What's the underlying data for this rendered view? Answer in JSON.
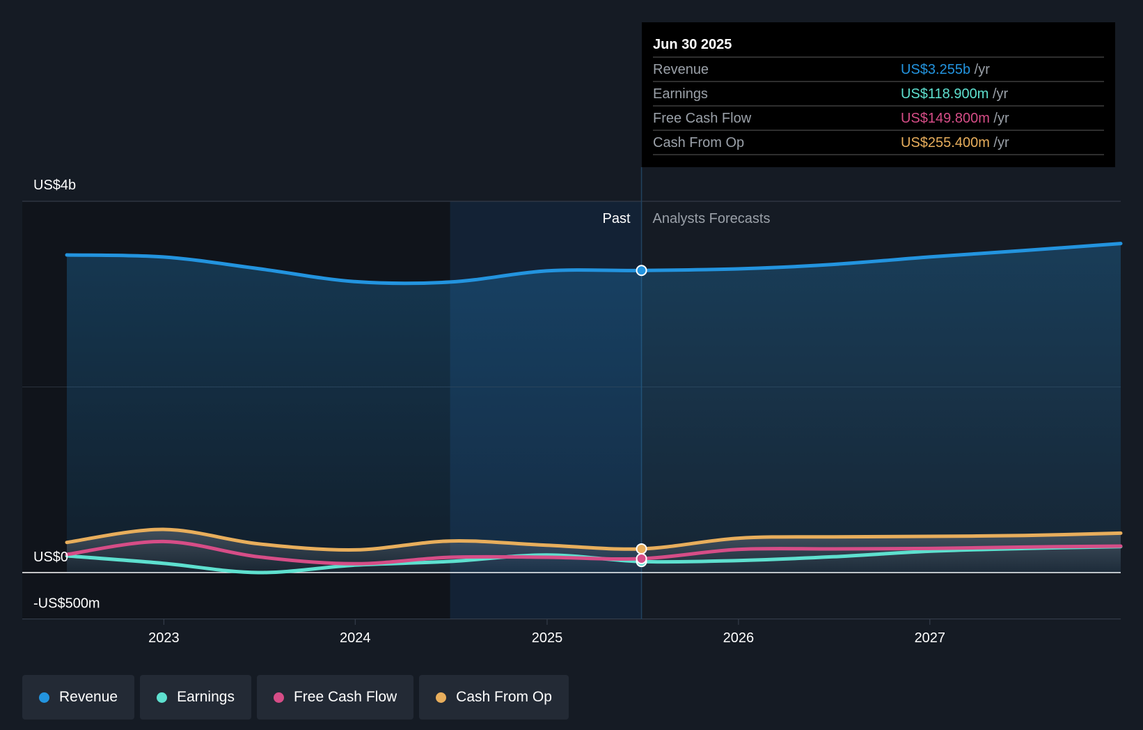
{
  "colors": {
    "background": "#151b24",
    "revenue": "#2394df",
    "earnings": "#5ee0cf",
    "free_cash_flow": "#d64d87",
    "cash_from_op": "#e8ae5c",
    "tooltip_bg": "#000000"
  },
  "tooltip": {
    "date": "Jun 30 2025",
    "rows": [
      {
        "label": "Revenue",
        "value": "US$3.255b",
        "unit": "/yr",
        "color": "#2394df"
      },
      {
        "label": "Earnings",
        "value": "US$118.900m",
        "unit": "/yr",
        "color": "#5ee0cf"
      },
      {
        "label": "Free Cash Flow",
        "value": "US$149.800m",
        "unit": "/yr",
        "color": "#d64d87"
      },
      {
        "label": "Cash From Op",
        "value": "US$255.400m",
        "unit": "/yr",
        "color": "#e8ae5c"
      }
    ]
  },
  "section_labels": {
    "past": "Past",
    "forecast": "Analysts Forecasts"
  },
  "legend": [
    {
      "label": "Revenue",
      "color": "#2394df",
      "icon": "revenue-dot-icon"
    },
    {
      "label": "Earnings",
      "color": "#5ee0cf",
      "icon": "earnings-dot-icon"
    },
    {
      "label": "Free Cash Flow",
      "color": "#d64d87",
      "icon": "free-cash-flow-dot-icon"
    },
    {
      "label": "Cash From Op",
      "color": "#e8ae5c",
      "icon": "cash-from-op-dot-icon"
    }
  ],
  "chart_data": {
    "type": "line",
    "xlabel": "",
    "ylabel": "",
    "x_ticks": [
      "2023",
      "2024",
      "2025",
      "2026",
      "2027"
    ],
    "y_ticks": [
      {
        "value": 4000,
        "label": "US$4b"
      },
      {
        "value": 0,
        "label": "US$0"
      },
      {
        "value": -500,
        "label": "-US$500m"
      }
    ],
    "ylim": [
      -500,
      4000
    ],
    "xlim": [
      "2022-06-30",
      "2027-12-31"
    ],
    "grid": true,
    "legend_position": "bottom-left",
    "past_region": [
      "2024-06-30",
      "2025-06-30"
    ],
    "focus_date": "2025-06-30",
    "series": [
      {
        "name": "Revenue",
        "color": "#2394df",
        "x": [
          "2022-06-30",
          "2022-12-31",
          "2023-06-30",
          "2023-12-31",
          "2024-06-30",
          "2024-12-31",
          "2025-06-30",
          "2025-12-31",
          "2026-06-30",
          "2026-12-31",
          "2027-06-30",
          "2027-12-31"
        ],
        "values": [
          3422,
          3400,
          3275,
          3135,
          3130,
          3250,
          3255,
          3272,
          3320,
          3400,
          3470,
          3545
        ]
      },
      {
        "name": "Earnings",
        "color": "#5ee0cf",
        "x": [
          "2022-06-30",
          "2022-12-31",
          "2023-06-30",
          "2023-12-31",
          "2024-06-30",
          "2024-12-31",
          "2025-06-30",
          "2025-12-31",
          "2026-06-30",
          "2026-12-31",
          "2027-06-30",
          "2027-12-31"
        ],
        "values": [
          180,
          100,
          0,
          80,
          120,
          190,
          118.9,
          130,
          170,
          230,
          260,
          280
        ]
      },
      {
        "name": "Free Cash Flow",
        "color": "#d64d87",
        "x": [
          "2022-06-30",
          "2022-12-31",
          "2023-06-30",
          "2023-12-31",
          "2024-06-30",
          "2024-12-31",
          "2025-06-30",
          "2025-12-31",
          "2026-06-30",
          "2026-12-31",
          "2027-06-30",
          "2027-12-31"
        ],
        "values": [
          195,
          335,
          170,
          95,
          165,
          165,
          149.8,
          250,
          255,
          260,
          275,
          285
        ]
      },
      {
        "name": "Cash From Op",
        "color": "#e8ae5c",
        "x": [
          "2022-06-30",
          "2022-12-31",
          "2023-06-30",
          "2023-12-31",
          "2024-06-30",
          "2024-12-31",
          "2025-06-30",
          "2025-12-31",
          "2026-06-30",
          "2026-12-31",
          "2027-06-30",
          "2027-12-31"
        ],
        "values": [
          325,
          465,
          310,
          245,
          340,
          295,
          255.4,
          370,
          385,
          390,
          400,
          425
        ]
      }
    ]
  }
}
